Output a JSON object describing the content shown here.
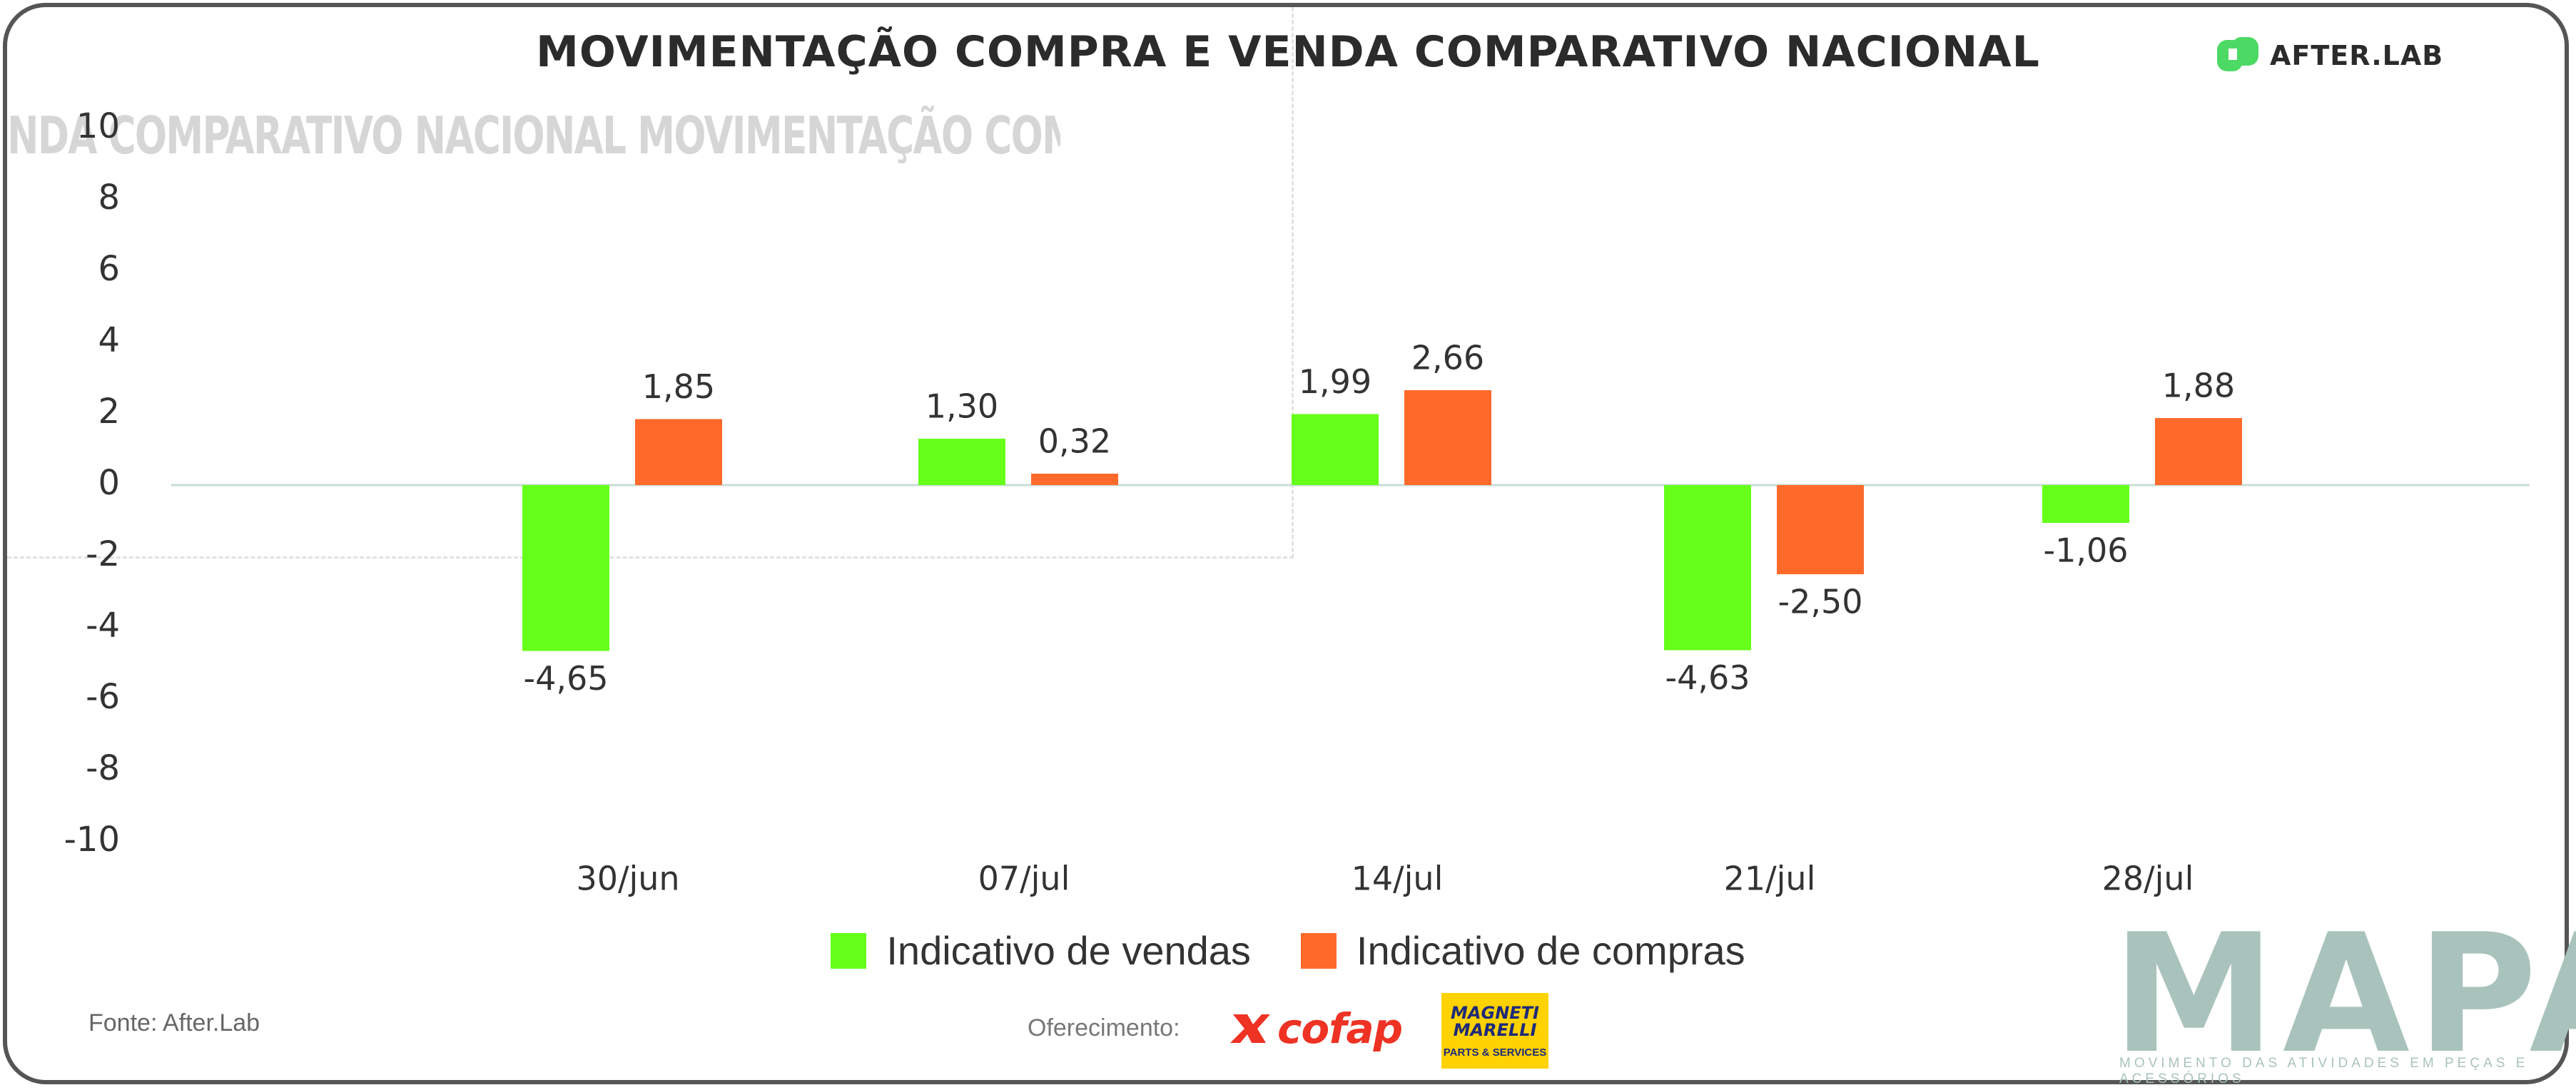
{
  "header": {
    "title": "MOVIMENTAÇÃO COMPRA E VENDA COMPARATIVO NACIONAL",
    "ghost_text": "NDA COMPARATIVO NACIONAL MOVIMENTAÇÃO COMPRA E VE",
    "brand": "AFTER.LAB"
  },
  "colors": {
    "vendas": "#66ff1a",
    "compras": "#ff6a2b",
    "zero_line": "#c9dcd6",
    "text": "#333333",
    "brand_green": "#4cd964"
  },
  "chart_data": {
    "type": "bar",
    "categories": [
      "30/jun",
      "07/jul",
      "14/jul",
      "21/jul",
      "28/jul"
    ],
    "series": [
      {
        "name": "Indicativo de vendas",
        "values": [
          -4.65,
          1.3,
          1.99,
          -4.63,
          -1.06
        ],
        "labels": [
          "-4,65",
          "1,30",
          "1,99",
          "-4,63",
          "-1,06"
        ]
      },
      {
        "name": "Indicativo de compras",
        "values": [
          1.85,
          0.32,
          2.66,
          -2.5,
          1.88
        ],
        "labels": [
          "1,85",
          "0,32",
          "2,66",
          "-2,50",
          "1,88"
        ]
      }
    ],
    "title": "MOVIMENTAÇÃO COMPRA E VENDA COMPARATIVO NACIONAL",
    "xlabel": "",
    "ylabel": "",
    "ylim": [
      -10,
      10
    ],
    "yticks": [
      10,
      8,
      6,
      4,
      2,
      0,
      -2,
      -4,
      -6,
      -8,
      -10
    ],
    "legend_position": "bottom-center"
  },
  "legend": {
    "vendas": "Indicativo de vendas",
    "compras": "Indicativo de compras"
  },
  "footer": {
    "source": "Fonte: After.Lab",
    "support": "Oferecimento:",
    "cofap": "cofap",
    "magneti_top": "MAGNETI MARELLI",
    "magneti_bottom": "PARTS & SERVICES",
    "mapa": "MAPA",
    "mapa_sub": "MOVIMENTO DAS ATIVIDADES EM PEÇAS E ACESSÓRIOS"
  }
}
